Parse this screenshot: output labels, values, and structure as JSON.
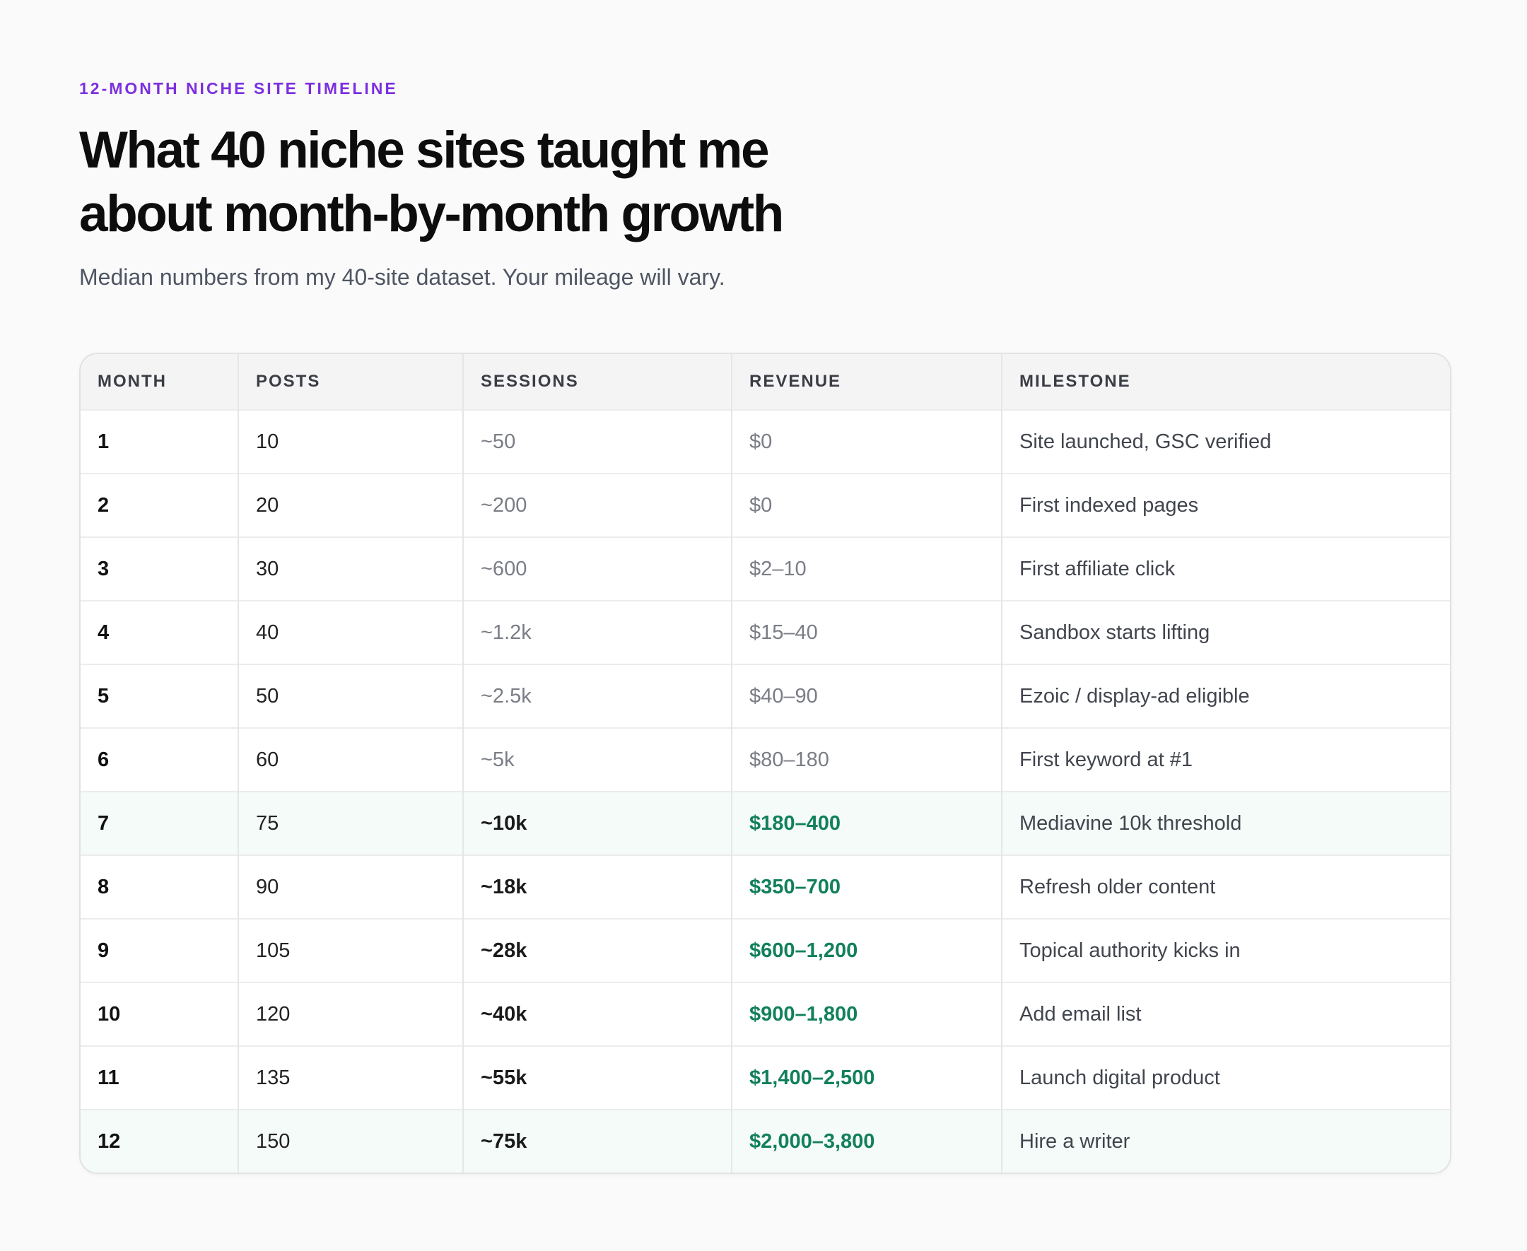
{
  "header": {
    "eyebrow": "12-MONTH NICHE SITE TIMELINE",
    "title": "What 40 niche sites taught me about month-by-month growth",
    "subtitle": "Median numbers from my 40-site dataset. Your mileage will vary."
  },
  "table": {
    "columns": [
      "MONTH",
      "POSTS",
      "SESSIONS",
      "REVENUE",
      "MILESTONE"
    ],
    "rows": [
      [
        "1",
        "10",
        "~50",
        "$0",
        "Site launched, GSC verified"
      ],
      [
        "2",
        "20",
        "~200",
        "$0",
        "First indexed pages"
      ],
      [
        "3",
        "30",
        "~600",
        "$2–10",
        "First affiliate click"
      ],
      [
        "4",
        "40",
        "~1.2k",
        "$15–40",
        "Sandbox starts lifting"
      ],
      [
        "5",
        "50",
        "~2.5k",
        "$40–90",
        "Ezoic / display-ad eligible"
      ],
      [
        "6",
        "60",
        "~5k",
        "$80–180",
        "First keyword at #1"
      ],
      [
        "7",
        "75",
        "~10k",
        "$180–400",
        "Mediavine 10k threshold"
      ],
      [
        "8",
        "90",
        "~18k",
        "$350–700",
        "Refresh older content"
      ],
      [
        "9",
        "105",
        "~28k",
        "$600–1,200",
        "Topical authority kicks in"
      ],
      [
        "10",
        "120",
        "~40k",
        "$900–1,800",
        "Add email list"
      ],
      [
        "11",
        "135",
        "~55k",
        "$1,400–2,500",
        "Launch digital product"
      ],
      [
        "12",
        "150",
        "~75k",
        "$2,000–3,800",
        "Hire a writer"
      ]
    ]
  }
}
